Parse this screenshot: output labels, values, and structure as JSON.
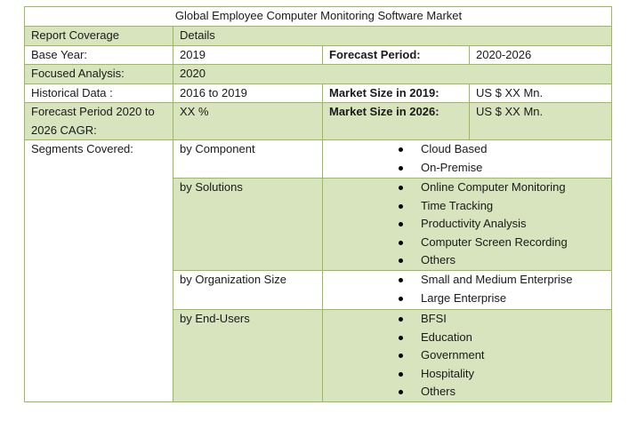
{
  "title": "Global Employee Computer Monitoring Software Market",
  "header": {
    "col1": "Report Coverage",
    "col2": "Details"
  },
  "rows": {
    "base_year": {
      "label": "Base Year:",
      "value": "2019",
      "key2": "Forecast Period:",
      "value2": "2020-2026"
    },
    "focused": {
      "label": "Focused Analysis:",
      "value": "2020"
    },
    "historical": {
      "label": "Historical Data :",
      "value": "2016 to 2019",
      "key2": "Market Size in 2019:",
      "value2": "US $ XX Mn."
    },
    "cagr": {
      "label": "Forecast Period 2020 to 2026 CAGR:",
      "value": "XX %",
      "key2": "Market Size in 2026:",
      "value2": "US $ XX Mn."
    }
  },
  "segments": {
    "label": "Segments Covered:",
    "groups": [
      {
        "name": "by Component",
        "items": [
          "Cloud Based",
          "On-Premise"
        ]
      },
      {
        "name": "by Solutions",
        "items": [
          "Online Computer Monitoring",
          "Time Tracking",
          "Productivity Analysis",
          "Computer Screen Recording",
          "Others"
        ]
      },
      {
        "name": "by Organization Size",
        "items": [
          "Small and Medium Enterprise",
          "Large Enterprise"
        ]
      },
      {
        "name": "by End-Users",
        "items": [
          "BFSI",
          "Education",
          "Government",
          "Hospitality",
          "Others"
        ]
      }
    ]
  }
}
